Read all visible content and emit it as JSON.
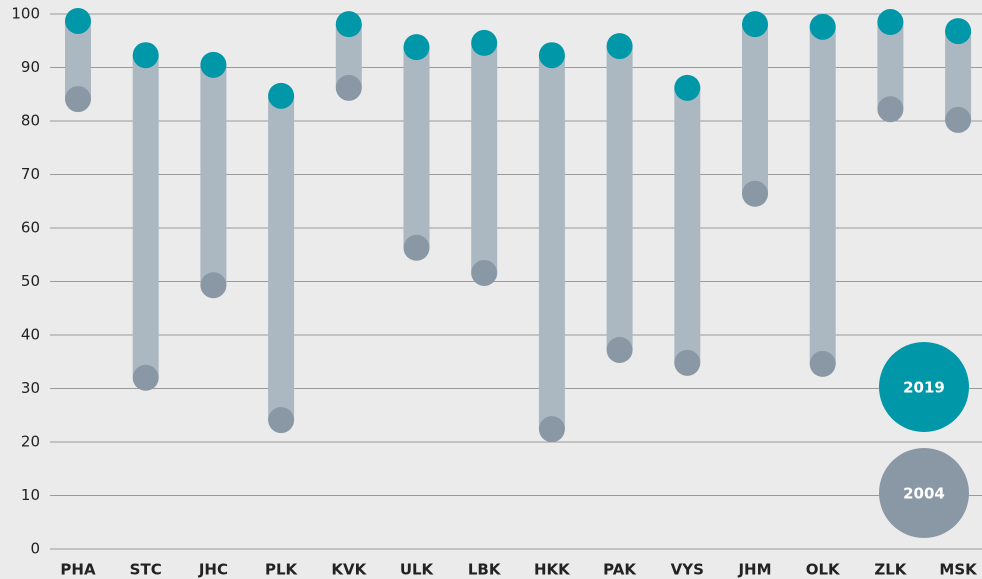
{
  "chart_data": {
    "type": "dumbbell",
    "categories": [
      "PHA",
      "STC",
      "JHC",
      "PLK",
      "KVK",
      "ULK",
      "LBK",
      "HKK",
      "PAK",
      "VYS",
      "JHM",
      "OLK",
      "ZLK",
      "MSK"
    ],
    "series": [
      {
        "name": "2019",
        "color": "#0098a8",
        "values": [
          98.7,
          92.3,
          90.5,
          84.7,
          98.1,
          93.8,
          94.6,
          92.3,
          94.0,
          86.2,
          98.1,
          97.6,
          98.5,
          96.8
        ]
      },
      {
        "name": "2004",
        "color": "#8a98a5",
        "values": [
          84.1,
          32.0,
          49.3,
          24.1,
          86.2,
          56.3,
          51.6,
          22.4,
          37.2,
          34.8,
          66.4,
          34.6,
          82.2,
          80.2
        ]
      }
    ],
    "range_color": "#abb8c1",
    "ylim": [
      0,
      100
    ],
    "yticks": [
      0,
      10,
      20,
      30,
      40,
      50,
      60,
      70,
      80,
      90,
      100
    ],
    "grid": true
  }
}
